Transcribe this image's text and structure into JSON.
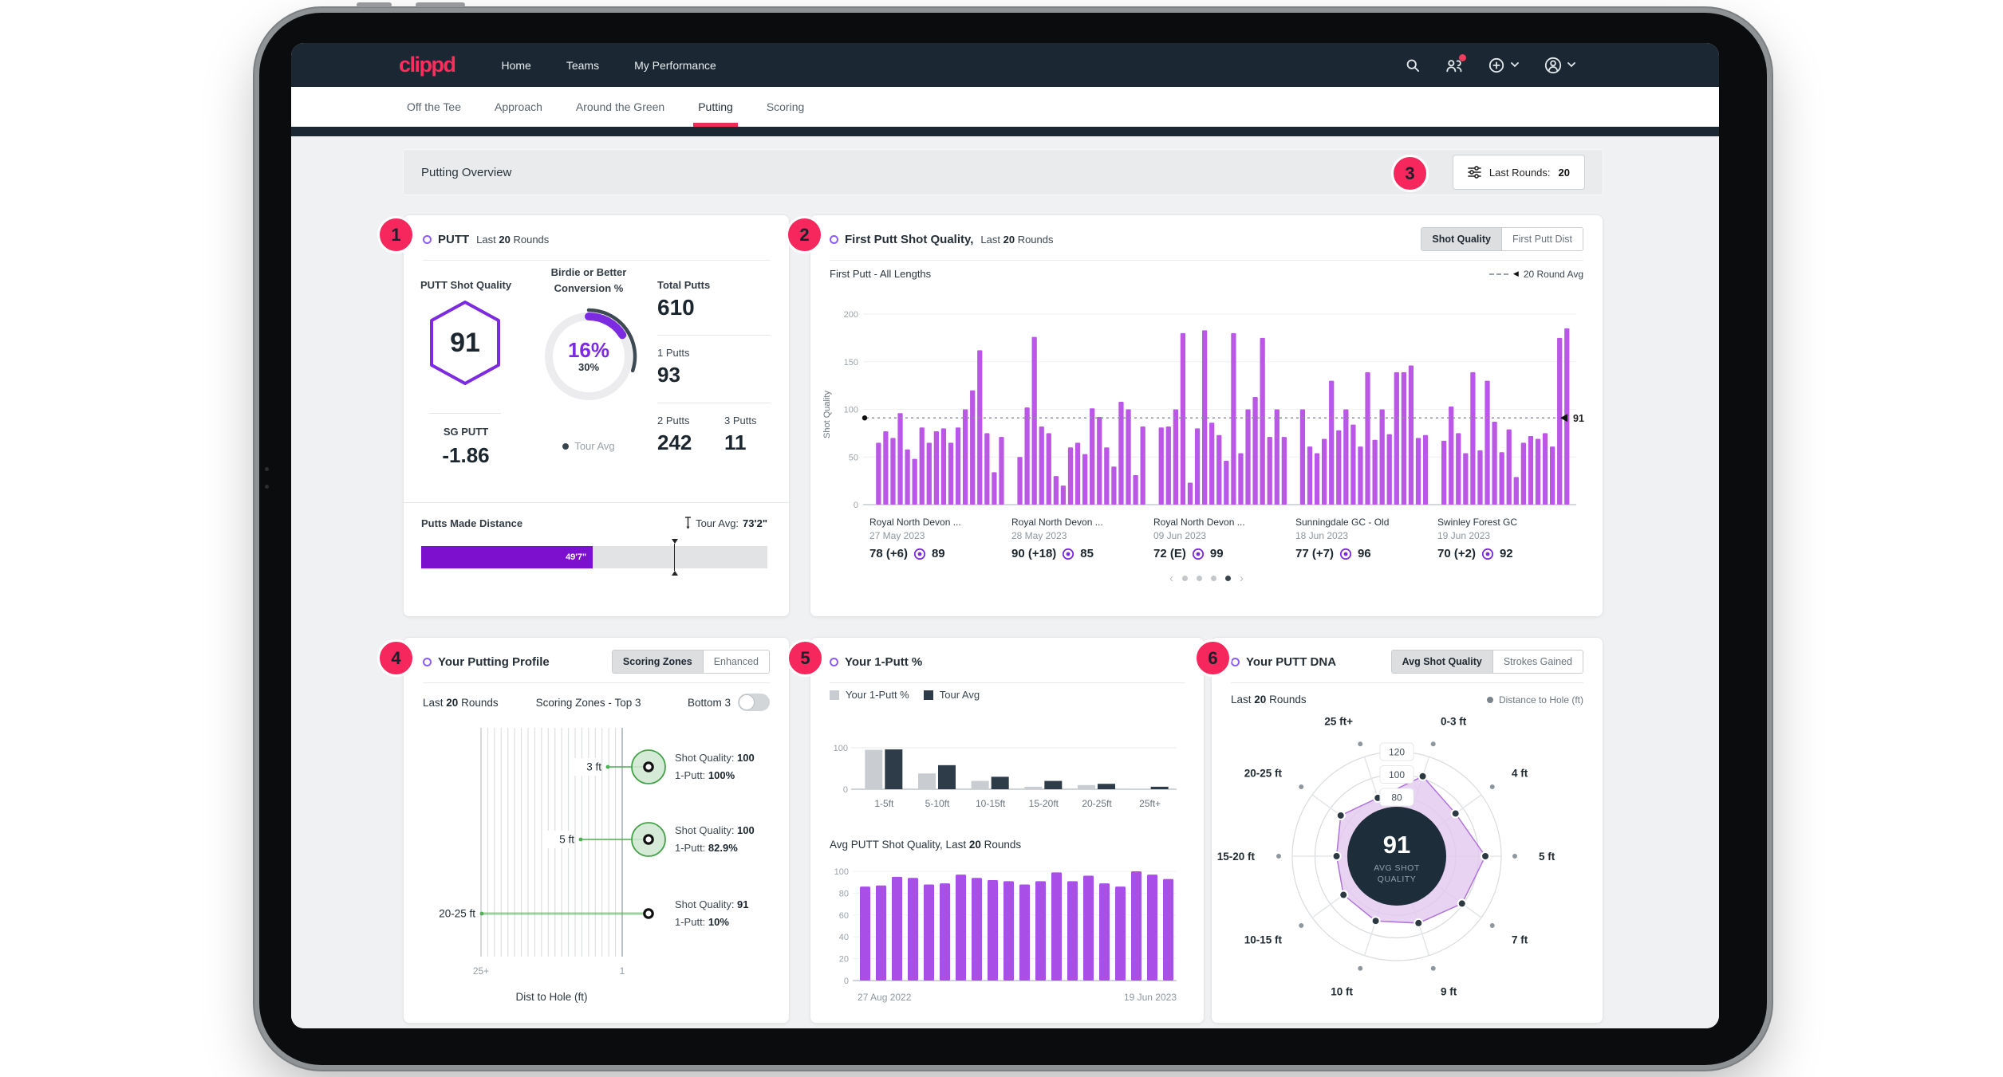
{
  "navbar": {
    "logo": "clippd",
    "items": [
      {
        "label": "Home"
      },
      {
        "label": "Teams"
      },
      {
        "label": "My Performance"
      }
    ]
  },
  "tabs": {
    "items": [
      {
        "label": "Off the Tee"
      },
      {
        "label": "Approach"
      },
      {
        "label": "Around the Green"
      },
      {
        "label": "Putting"
      },
      {
        "label": "Scoring"
      }
    ],
    "active": "Putting"
  },
  "overview": {
    "title": "Putting Overview",
    "button_label": "Last Rounds:",
    "button_value": "20"
  },
  "annotations": {
    "a1": "1",
    "a2": "2",
    "a3": "3",
    "a4": "4",
    "a5": "5",
    "a6": "6"
  },
  "colors": {
    "accent_pink": "#ef2e56",
    "purple": "#7d2be0",
    "magenta": "#bb57e6",
    "dark_navy": "#1b2733",
    "green": "#43a047",
    "tour_dark": "#2e3c49",
    "light_gray_bar": "#c9cdd1"
  },
  "putt_card": {
    "title": "PUTT",
    "rounds_pre": "Last",
    "rounds_value": "20",
    "rounds_post": "Rounds",
    "shot_quality_label": "PUTT Shot Quality",
    "shot_quality_value": "91",
    "sg_label": "SG PUTT",
    "sg_value": "-1.86",
    "conversion": {
      "label_line1": "Birdie or Better",
      "label_line2": "Conversion %",
      "value_label": "16%",
      "tour_label": "30%",
      "value_pct": 16,
      "tour_pct": 30,
      "legend": "Tour Avg"
    },
    "totals": {
      "total_label": "Total Putts",
      "total": "610",
      "one_label": "1 Putts",
      "one": "93",
      "two_label": "2 Putts",
      "two": "242",
      "three_label": "3 Putts",
      "three": "11"
    },
    "putts_made": {
      "label": "Putts Made Distance",
      "fill_label": "49'7\"",
      "fill_pct": 49.6,
      "tour_label": "Tour Avg:",
      "tour_value": "73'2\"",
      "marker_pct": 73.2
    }
  },
  "first_putt_card": {
    "title": "First Putt Shot Quality,",
    "rounds_pre": "Last",
    "rounds_value": "20",
    "rounds_post": "Rounds",
    "seg_left": "Shot Quality",
    "seg_right": "First Putt Dist",
    "chart_title": "First Putt - All Lengths",
    "legend": "20 Round Avg"
  },
  "profile_card": {
    "title": "Your Putting Profile",
    "seg_left": "Scoring Zones",
    "seg_right": "Enhanced",
    "rounds_pre": "Last",
    "rounds_value": "20",
    "rounds_post": "Rounds",
    "zones_label": "Scoring Zones - Top 3",
    "bottom_label": "Bottom 3"
  },
  "one_putt_card": {
    "title": "Your 1-Putt %",
    "avg_title_pre": "Avg PUTT Shot Quality, Last",
    "avg_title_value": "20",
    "avg_title_post": "Rounds"
  },
  "dna_card": {
    "title": "Your PUTT DNA",
    "seg_left": "Avg Shot Quality",
    "seg_right": "Strokes Gained",
    "rounds_pre": "Last",
    "rounds_value": "20",
    "rounds_post": "Rounds",
    "legend": "Distance to Hole (ft)"
  },
  "chart_data": {
    "first_putt": {
      "type": "bar",
      "ylabel": "Shot Quality",
      "yticks": [
        0,
        50,
        100,
        150,
        200
      ],
      "ylim": [
        0,
        200
      ],
      "avg_line": 91,
      "bar_color": "#bb57e6",
      "groups": [
        {
          "course": "Royal North Devon ...",
          "date": "27 May 2023",
          "score": "78 (+6)",
          "sq": "89",
          "bars": [
            65,
            77,
            70,
            96,
            58,
            48,
            81,
            65,
            77,
            80,
            65,
            81,
            100,
            120,
            162,
            75,
            34,
            71
          ]
        },
        {
          "course": "Royal North Devon ...",
          "date": "28 May 2023",
          "score": "90 (+18)",
          "sq": "85",
          "bars": [
            50,
            102,
            176,
            82,
            75,
            30,
            20,
            60,
            65,
            53,
            101,
            92,
            60,
            40,
            108,
            100,
            31,
            82
          ]
        },
        {
          "course": "Royal North Devon ...",
          "date": "09 Jun 2023",
          "score": "72 (E)",
          "sq": "99",
          "bars": [
            81,
            82,
            100,
            180,
            23,
            80,
            183,
            86,
            73,
            46,
            180,
            54,
            100,
            113,
            175,
            71,
            100,
            71
          ]
        },
        {
          "course": "Sunningdale GC - Old",
          "date": "18 Jun 2023",
          "score": "77 (+7)",
          "sq": "96",
          "bars": [
            100,
            61,
            54,
            69,
            130,
            78,
            100,
            84,
            61,
            139,
            68,
            100,
            74,
            139,
            139,
            146,
            70,
            73
          ]
        },
        {
          "course": "Swinley Forest GC",
          "date": "19 Jun 2023",
          "score": "70 (+2)",
          "sq": "92",
          "bars": [
            67,
            103,
            75,
            54,
            139,
            57,
            130,
            87,
            55,
            79,
            29,
            65,
            72,
            69,
            75,
            61,
            175,
            185
          ]
        }
      ],
      "pager_dots": 4,
      "pager_active": 3
    },
    "putting_profile": {
      "type": "scatter",
      "x_ticks": [
        "25+",
        "1"
      ],
      "xlabel": "Dist to Hole (ft)",
      "rows": [
        {
          "distance": "3 ft",
          "sq_label": "Shot Quality:",
          "sq": "100",
          "op_label": "1-Putt:",
          "one_putt": "100%",
          "size": "large"
        },
        {
          "distance": "5 ft",
          "sq_label": "Shot Quality:",
          "sq": "100",
          "op_label": "1-Putt:",
          "one_putt": "82.9%",
          "size": "large"
        },
        {
          "distance": "20-25 ft",
          "sq_label": "Shot Quality:",
          "sq": "91",
          "op_label": "1-Putt:",
          "one_putt": "10%",
          "size": "small"
        }
      ]
    },
    "one_putt": {
      "type": "bar",
      "categories": [
        "1-5ft",
        "5-10ft",
        "10-15ft",
        "15-20ft",
        "20-25ft",
        "25ft+"
      ],
      "yticks": [
        0,
        100
      ],
      "ylim": [
        0,
        100
      ],
      "series": [
        {
          "name": "Your 1-Putt %",
          "color": "#c9cdd1",
          "values": [
            95,
            38,
            20,
            6,
            10,
            1
          ]
        },
        {
          "name": "Tour Avg",
          "color": "#2e3c49",
          "values": [
            96,
            58,
            30,
            20,
            13,
            6
          ]
        }
      ]
    },
    "avg_putt_sq": {
      "type": "bar",
      "bar_color": "#a94fe8",
      "yticks": [
        0,
        20,
        40,
        60,
        80,
        100
      ],
      "ylim": [
        0,
        100
      ],
      "values": [
        86,
        87,
        95,
        94,
        88,
        89,
        97,
        94,
        92,
        91,
        88,
        91,
        99,
        91,
        96,
        89,
        86,
        100,
        97,
        93
      ],
      "x_labels": [
        "27 Aug 2022",
        "19 Jun 2023"
      ]
    },
    "putt_dna": {
      "type": "radar",
      "axes": [
        "0-3 ft",
        "4 ft",
        "5 ft",
        "7 ft",
        "9 ft",
        "10 ft",
        "10-15 ft",
        "15-20 ft",
        "20-25 ft",
        "25 ft+"
      ],
      "values": [
        102,
        92,
        106,
        99,
        90,
        88,
        86,
        81,
        89,
        82
      ],
      "rings": [
        80,
        100,
        120
      ],
      "center_value": "91",
      "center_label_line1": "AVG SHOT",
      "center_label_line2": "QUALITY"
    }
  }
}
